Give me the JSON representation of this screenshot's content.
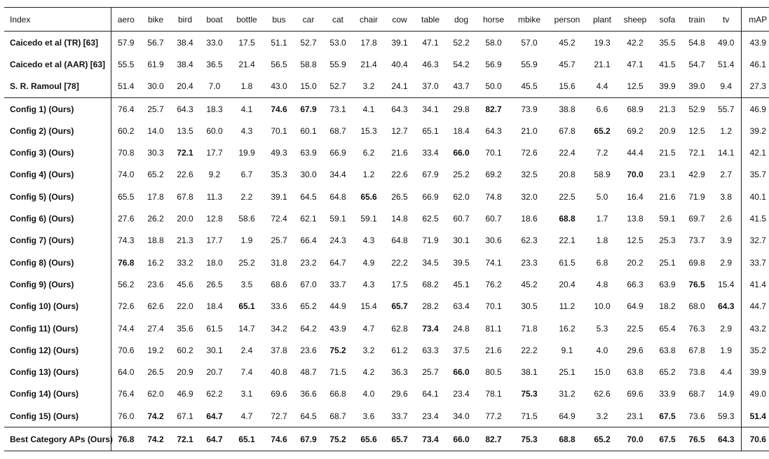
{
  "columns": [
    "Index",
    "aero",
    "bike",
    "bird",
    "boat",
    "bottle",
    "bus",
    "car",
    "cat",
    "chair",
    "cow",
    "table",
    "dog",
    "horse",
    "mbike",
    "person",
    "plant",
    "sheep",
    "sofa",
    "train",
    "tv",
    "mAP"
  ],
  "rows": [
    {
      "label": "Caicedo et al (TR) [63]",
      "values": [
        "57.9",
        "56.7",
        "38.4",
        "33.0",
        "17.5",
        "51.1",
        "52.7",
        "53.0",
        "17.8",
        "39.1",
        "47.1",
        "52.2",
        "58.0",
        "57.0",
        "45.2",
        "19.3",
        "42.2",
        "35.5",
        "54.8",
        "49.0",
        "43.9"
      ],
      "bold": []
    },
    {
      "label": "Caicedo et al (AAR) [63]",
      "values": [
        "55.5",
        "61.9",
        "38.4",
        "36.5",
        "21.4",
        "56.5",
        "58.8",
        "55.9",
        "21.4",
        "40.4",
        "46.3",
        "54.2",
        "56.9",
        "55.9",
        "45.7",
        "21.1",
        "47.1",
        "41.5",
        "54.7",
        "51.4",
        "46.1"
      ],
      "bold": []
    },
    {
      "label": "S. R. Ramoul [78]",
      "values": [
        "51.4",
        "30.0",
        "20.4",
        "7.0",
        "1.8",
        "43.0",
        "15.0",
        "52.7",
        "3.2",
        "24.1",
        "37.0",
        "43.7",
        "50.0",
        "45.5",
        "15.6",
        "4.4",
        "12.5",
        "39.9",
        "39.0",
        "9.4",
        "27.3"
      ],
      "bold": []
    },
    {
      "label": "Config 1) (Ours)",
      "values": [
        "76.4",
        "25.7",
        "64.3",
        "18.3",
        "4.1",
        "74.6",
        "67.9",
        "73.1",
        "4.1",
        "64.3",
        "34.1",
        "29.8",
        "82.7",
        "73.9",
        "38.8",
        "6.6",
        "68.9",
        "21.3",
        "52.9",
        "55.7",
        "46.9"
      ],
      "bold": [
        5,
        6,
        12
      ]
    },
    {
      "label": "Config 2) (Ours)",
      "values": [
        "60.2",
        "14.0",
        "13.5",
        "60.0",
        "4.3",
        "70.1",
        "60.1",
        "68.7",
        "15.3",
        "12.7",
        "65.1",
        "18.4",
        "64.3",
        "21.0",
        "67.8",
        "65.2",
        "69.2",
        "20.9",
        "12.5",
        "1.2",
        "39.2"
      ],
      "bold": [
        15
      ]
    },
    {
      "label": "Config 3) (Ours)",
      "values": [
        "70.8",
        "30.3",
        "72.1",
        "17.7",
        "19.9",
        "49.3",
        "63.9",
        "66.9",
        "6.2",
        "21.6",
        "33.4",
        "66.0",
        "70.1",
        "72.6",
        "22.4",
        "7.2",
        "44.4",
        "21.5",
        "72.1",
        "14.1",
        "42.1"
      ],
      "bold": [
        2,
        11
      ]
    },
    {
      "label": "Config 4) (Ours)",
      "values": [
        "74.0",
        "65.2",
        "22.6",
        "9.2",
        "6.7",
        "35.3",
        "30.0",
        "34.4",
        "1.2",
        "22.6",
        "67.9",
        "25.2",
        "69.2",
        "32.5",
        "20.8",
        "58.9",
        "70.0",
        "23.1",
        "42.9",
        "2.7",
        "35.7"
      ],
      "bold": [
        16
      ]
    },
    {
      "label": "Config 5) (Ours)",
      "values": [
        "65.5",
        "17.8",
        "67.8",
        "11.3",
        "2.2",
        "39.1",
        "64.5",
        "64.8",
        "65.6",
        "26.5",
        "66.9",
        "62.0",
        "74.8",
        "32.0",
        "22.5",
        "5.0",
        "16.4",
        "21.6",
        "71.9",
        "3.8",
        "40.1"
      ],
      "bold": [
        8
      ]
    },
    {
      "label": "Config 6) (Ours)",
      "values": [
        "27.6",
        "26.2",
        "20.0",
        "12.8",
        "58.6",
        "72.4",
        "62.1",
        "59.1",
        "59.1",
        "14.8",
        "62.5",
        "60.7",
        "60.7",
        "18.6",
        "68.8",
        "1.7",
        "13.8",
        "59.1",
        "69.7",
        "2.6",
        "41.5"
      ],
      "bold": [
        14
      ]
    },
    {
      "label": "Config 7) (Ours)",
      "values": [
        "74.3",
        "18.8",
        "21.3",
        "17.7",
        "1.9",
        "25.7",
        "66.4",
        "24.3",
        "4.3",
        "64.8",
        "71.9",
        "30.1",
        "30.6",
        "62.3",
        "22.1",
        "1.8",
        "12.5",
        "25.3",
        "73.7",
        "3.9",
        "32.7"
      ],
      "bold": []
    },
    {
      "label": "Config 8) (Ours)",
      "values": [
        "76.8",
        "16.2",
        "33.2",
        "18.0",
        "25.2",
        "31.8",
        "23.2",
        "64.7",
        "4.9",
        "22.2",
        "34.5",
        "39.5",
        "74.1",
        "23.3",
        "61.5",
        "6.8",
        "20.2",
        "25.1",
        "69.8",
        "2.9",
        "33.7"
      ],
      "bold": [
        0
      ]
    },
    {
      "label": "Config 9) (Ours)",
      "values": [
        "56.2",
        "23.6",
        "45.6",
        "26.5",
        "3.5",
        "68.6",
        "67.0",
        "33.7",
        "4.3",
        "17.5",
        "68.2",
        "45.1",
        "76.2",
        "45.2",
        "20.4",
        "4.8",
        "66.3",
        "63.9",
        "76.5",
        "15.4",
        "41.4"
      ],
      "bold": [
        18
      ]
    },
    {
      "label": "Config 10) (Ours)",
      "values": [
        "72.6",
        "62.6",
        "22.0",
        "18.4",
        "65.1",
        "33.6",
        "65.2",
        "44.9",
        "15.4",
        "65.7",
        "28.2",
        "63.4",
        "70.1",
        "30.5",
        "11.2",
        "10.0",
        "64.9",
        "18.2",
        "68.0",
        "64.3",
        "44.7"
      ],
      "bold": [
        4,
        9,
        19
      ]
    },
    {
      "label": "Config 11) (Ours)",
      "values": [
        "74.4",
        "27.4",
        "35.6",
        "61.5",
        "14.7",
        "34.2",
        "64.2",
        "43.9",
        "4.7",
        "62.8",
        "73.4",
        "24.8",
        "81.1",
        "71.8",
        "16.2",
        "5.3",
        "22.5",
        "65.4",
        "76.3",
        "2.9",
        "43.2"
      ],
      "bold": [
        10
      ]
    },
    {
      "label": "Config 12) (Ours)",
      "values": [
        "70.6",
        "19.2",
        "60.2",
        "30.1",
        "2.4",
        "37.8",
        "23.6",
        "75.2",
        "3.2",
        "61.2",
        "63.3",
        "37.5",
        "21.6",
        "22.2",
        "9.1",
        "4.0",
        "29.6",
        "63.8",
        "67.8",
        "1.9",
        "35.2"
      ],
      "bold": [
        7
      ]
    },
    {
      "label": "Config 13) (Ours)",
      "values": [
        "64.0",
        "26.5",
        "20.9",
        "20.7",
        "7.4",
        "40.8",
        "48.7",
        "71.5",
        "4.2",
        "36.3",
        "25.7",
        "66.0",
        "80.5",
        "38.1",
        "25.1",
        "15.0",
        "63.8",
        "65.2",
        "73.8",
        "4.4",
        "39.9"
      ],
      "bold": [
        11
      ]
    },
    {
      "label": "Config 14) (Ours)",
      "values": [
        "76.4",
        "62.0",
        "46.9",
        "62.2",
        "3.1",
        "69.6",
        "36.6",
        "66.8",
        "4.0",
        "29.6",
        "64.1",
        "23.4",
        "78.1",
        "75.3",
        "31.2",
        "62.6",
        "69.6",
        "33.9",
        "68.7",
        "14.9",
        "49.0"
      ],
      "bold": [
        13
      ]
    },
    {
      "label": "Config 15) (Ours)",
      "values": [
        "76.0",
        "74.2",
        "67.1",
        "64.7",
        "4.7",
        "72.7",
        "64.5",
        "68.7",
        "3.6",
        "33.7",
        "23.4",
        "34.0",
        "77.2",
        "71.5",
        "64.9",
        "3.2",
        "23.1",
        "67.5",
        "73.6",
        "59.3",
        "51.4"
      ],
      "bold": [
        1,
        3,
        17,
        20
      ]
    }
  ],
  "best_row": {
    "label": "Best Category APs (Ours)",
    "values": [
      "76.8",
      "74.2",
      "72.1",
      "64.7",
      "65.1",
      "74.6",
      "67.9",
      "75.2",
      "65.6",
      "65.7",
      "73.4",
      "66.0",
      "82.7",
      "75.3",
      "68.8",
      "65.2",
      "70.0",
      "67.5",
      "76.5",
      "64.3",
      "70.6"
    ]
  }
}
